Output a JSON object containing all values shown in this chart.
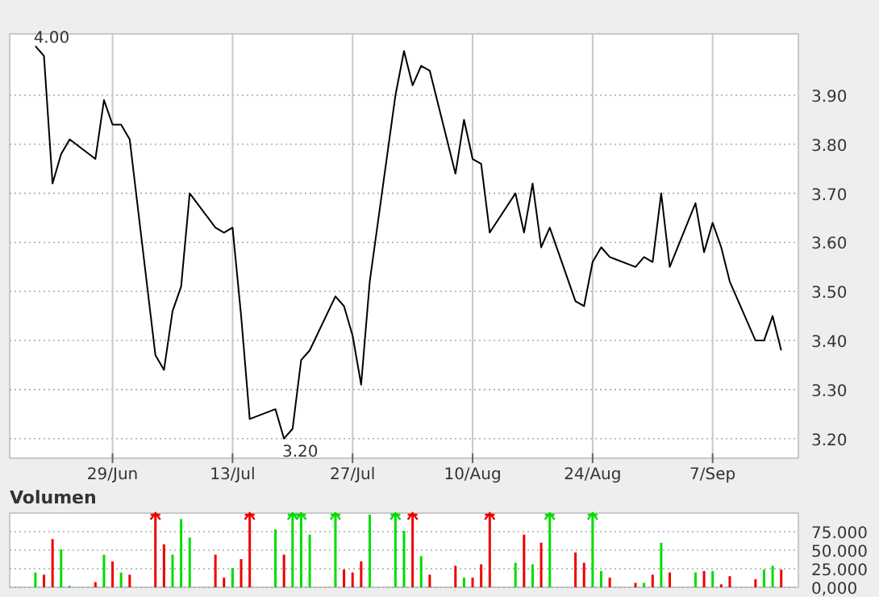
{
  "chart_data": [
    {
      "type": "line",
      "x": [
        "--06-20",
        "--06-21",
        "--06-22",
        "--06-23",
        "--06-24",
        "--06-27",
        "--06-28",
        "--06-29",
        "--06-30",
        "--07-01",
        "--07-04",
        "--07-05",
        "--07-06",
        "--07-07",
        "--07-08",
        "--07-11",
        "--07-12",
        "--07-13",
        "--07-14",
        "--07-15",
        "--07-18",
        "--07-19",
        "--07-20",
        "--07-21",
        "--07-22",
        "--07-25",
        "--07-26",
        "--07-27",
        "--07-28",
        "--07-29",
        "--08-01",
        "--08-02",
        "--08-03",
        "--08-04",
        "--08-05",
        "--08-08",
        "--08-09",
        "--08-10",
        "--08-11",
        "--08-12",
        "--08-15",
        "--08-16",
        "--08-17",
        "--08-18",
        "--08-19",
        "--08-22",
        "--08-23",
        "--08-24",
        "--08-25",
        "--08-26",
        "--08-29",
        "--08-30",
        "--08-31",
        "--09-01",
        "--09-02",
        "--09-05",
        "--09-06",
        "--09-07",
        "--09-08",
        "--09-09",
        "--09-12",
        "--09-13",
        "--09-14",
        "--09-15"
      ],
      "series": [
        {
          "color": "#000000",
          "values": [
            4.0,
            3.98,
            3.72,
            3.78,
            3.81,
            3.77,
            3.89,
            3.84,
            3.84,
            3.81,
            3.37,
            3.34,
            3.46,
            3.51,
            3.7,
            3.63,
            3.62,
            3.63,
            3.45,
            3.24,
            3.26,
            3.2,
            3.22,
            3.36,
            3.38,
            3.49,
            3.47,
            3.41,
            3.31,
            3.52,
            3.9,
            3.99,
            3.92,
            3.96,
            3.95,
            3.74,
            3.85,
            3.77,
            3.76,
            3.62,
            3.7,
            3.62,
            3.72,
            3.59,
            3.63,
            3.48,
            3.47,
            3.56,
            3.59,
            3.57,
            3.55,
            3.57,
            3.56,
            3.7,
            3.55,
            3.68,
            3.58,
            3.64,
            3.59,
            3.52,
            3.4,
            3.4,
            3.45,
            3.38
          ]
        }
      ],
      "xlim": [
        "--06-17",
        "--09-17"
      ],
      "xticks": [
        {
          "value": "--06-29",
          "label": "29/Jun"
        },
        {
          "value": "--07-13",
          "label": "13/Jul"
        },
        {
          "value": "--07-27",
          "label": "27/Jul"
        },
        {
          "value": "--08-10",
          "label": "10/Aug"
        },
        {
          "value": "--08-24",
          "label": "24/Aug"
        },
        {
          "value": "--09-07",
          "label": "7/Sep"
        }
      ],
      "ylim": [
        3.16,
        4.025
      ],
      "yticks": [
        {
          "value": 3.2,
          "label": "3.20"
        },
        {
          "value": 3.3,
          "label": "3.30"
        },
        {
          "value": 3.4,
          "label": "3.40"
        },
        {
          "value": 3.5,
          "label": "3.50"
        },
        {
          "value": 3.6,
          "label": "3.60"
        },
        {
          "value": 3.7,
          "label": "3.70"
        },
        {
          "value": 3.8,
          "label": "3.80"
        },
        {
          "value": 3.9,
          "label": "3.90"
        }
      ],
      "annotations": [
        {
          "text": "4.00",
          "x": "--06-20",
          "y": 4.0
        },
        {
          "text": "3.20",
          "x": "--07-19",
          "y": 3.2
        }
      ],
      "grid": true,
      "marker": "none",
      "line_style": "solid"
    },
    {
      "type": "bar",
      "title": "Volumen",
      "x": [
        "--06-20",
        "--06-21",
        "--06-22",
        "--06-23",
        "--06-24",
        "--06-27",
        "--06-28",
        "--06-29",
        "--06-30",
        "--07-01",
        "--07-04",
        "--07-05",
        "--07-06",
        "--07-07",
        "--07-08",
        "--07-11",
        "--07-12",
        "--07-13",
        "--07-14",
        "--07-15",
        "--07-18",
        "--07-19",
        "--07-20",
        "--07-21",
        "--07-22",
        "--07-25",
        "--07-26",
        "--07-27",
        "--07-28",
        "--07-29",
        "--08-01",
        "--08-02",
        "--08-03",
        "--08-04",
        "--08-05",
        "--08-08",
        "--08-09",
        "--08-10",
        "--08-11",
        "--08-12",
        "--08-15",
        "--08-16",
        "--08-17",
        "--08-18",
        "--08-19",
        "--08-22",
        "--08-23",
        "--08-24",
        "--08-25",
        "--08-26",
        "--08-29",
        "--08-30",
        "--08-31",
        "--09-01",
        "--09-02",
        "--09-05",
        "--09-06",
        "--09-07",
        "--09-08",
        "--09-09",
        "--09-12",
        "--09-13",
        "--09-14",
        "--09-15"
      ],
      "values": [
        20,
        17,
        65,
        51,
        2,
        7,
        44,
        35,
        20,
        17,
        100,
        58,
        44,
        92,
        67,
        44,
        13,
        26,
        38,
        100,
        78,
        44,
        100,
        100,
        71,
        100,
        24,
        20,
        35,
        98,
        100,
        76,
        100,
        42,
        17,
        29,
        13,
        13,
        31,
        100,
        33,
        71,
        31,
        60,
        100,
        47,
        33,
        100,
        22,
        13,
        6,
        6,
        17,
        60,
        20,
        20,
        22,
        22,
        4,
        15,
        11,
        24,
        29,
        24
      ],
      "colors": [
        "#00dd00",
        "#ee0000",
        "#ee0000",
        "#00dd00",
        "#00dd00",
        "#ee0000",
        "#00dd00",
        "#ee0000",
        "#00dd00",
        "#ee0000",
        "#ee0000",
        "#ee0000",
        "#00dd00",
        "#00dd00",
        "#00dd00",
        "#ee0000",
        "#ee0000",
        "#00dd00",
        "#ee0000",
        "#ee0000",
        "#00dd00",
        "#ee0000",
        "#00dd00",
        "#00dd00",
        "#00dd00",
        "#00dd00",
        "#ee0000",
        "#ee0000",
        "#ee0000",
        "#00dd00",
        "#00dd00",
        "#00dd00",
        "#ee0000",
        "#00dd00",
        "#ee0000",
        "#ee0000",
        "#00dd00",
        "#ee0000",
        "#ee0000",
        "#ee0000",
        "#00dd00",
        "#ee0000",
        "#00dd00",
        "#ee0000",
        "#00dd00",
        "#ee0000",
        "#ee0000",
        "#00dd00",
        "#00dd00",
        "#ee0000",
        "#ee0000",
        "#00dd00",
        "#ee0000",
        "#00dd00",
        "#ee0000",
        "#00dd00",
        "#ee0000",
        "#00dd00",
        "#ee0000",
        "#ee0000",
        "#ee0000",
        "#00dd00",
        "#00dd00",
        "#ee0000"
      ],
      "xlim": [
        "--06-17",
        "--09-17"
      ],
      "ylim": [
        0,
        100
      ],
      "yticks": [
        {
          "value": 0,
          "label": "0,000"
        },
        {
          "value": 25,
          "label": "25.000"
        },
        {
          "value": 50,
          "label": "50.000"
        },
        {
          "value": 75,
          "label": "75.000"
        }
      ],
      "tick_labels": "y",
      "grid": true
    }
  ]
}
